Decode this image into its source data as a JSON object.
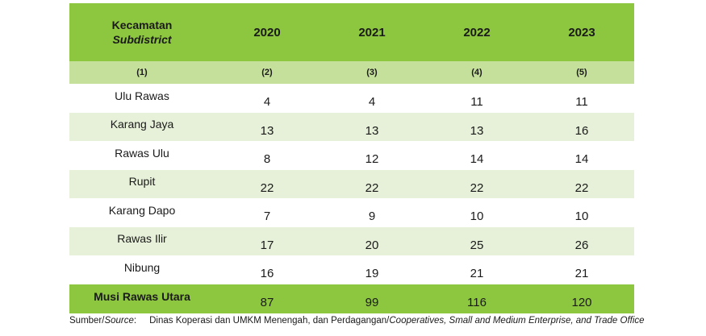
{
  "table": {
    "header": {
      "col0_line1": "Kecamatan",
      "col0_line2": "Subdistrict",
      "years": [
        "2020",
        "2021",
        "2022",
        "2023"
      ]
    },
    "col_numbers": [
      "(1)",
      "(2)",
      "(3)",
      "(4)",
      "(5)"
    ],
    "rows": [
      {
        "name": "Ulu Rawas",
        "values": [
          "4",
          "4",
          "11",
          "11"
        ]
      },
      {
        "name": "Karang Jaya",
        "values": [
          "13",
          "13",
          "13",
          "16"
        ]
      },
      {
        "name": "Rawas Ulu",
        "values": [
          "8",
          "12",
          "14",
          "14"
        ]
      },
      {
        "name": "Rupit",
        "values": [
          "22",
          "22",
          "22",
          "22"
        ]
      },
      {
        "name": "Karang Dapo",
        "values": [
          "7",
          "9",
          "10",
          "10"
        ]
      },
      {
        "name": "Rawas Ilir",
        "values": [
          "17",
          "20",
          "25",
          "26"
        ]
      },
      {
        "name": "Nibung",
        "values": [
          "16",
          "19",
          "21",
          "21"
        ]
      }
    ],
    "total": {
      "name": "Musi Rawas Utara",
      "values": [
        "87",
        "99",
        "116",
        "120"
      ]
    }
  },
  "source": {
    "label": "Sumber/",
    "label_italic": "Source",
    "label_colon": ":",
    "text": "Dinas Koperasi dan UMKM Menengah, dan Perdagangan/",
    "text_italic": "Cooperatives, Small and Medium Enterprise, and Trade Office"
  },
  "colors": {
    "header": "#8dc63f",
    "number_row": "#c5e09a",
    "alt_row": "#e7f1d9"
  }
}
